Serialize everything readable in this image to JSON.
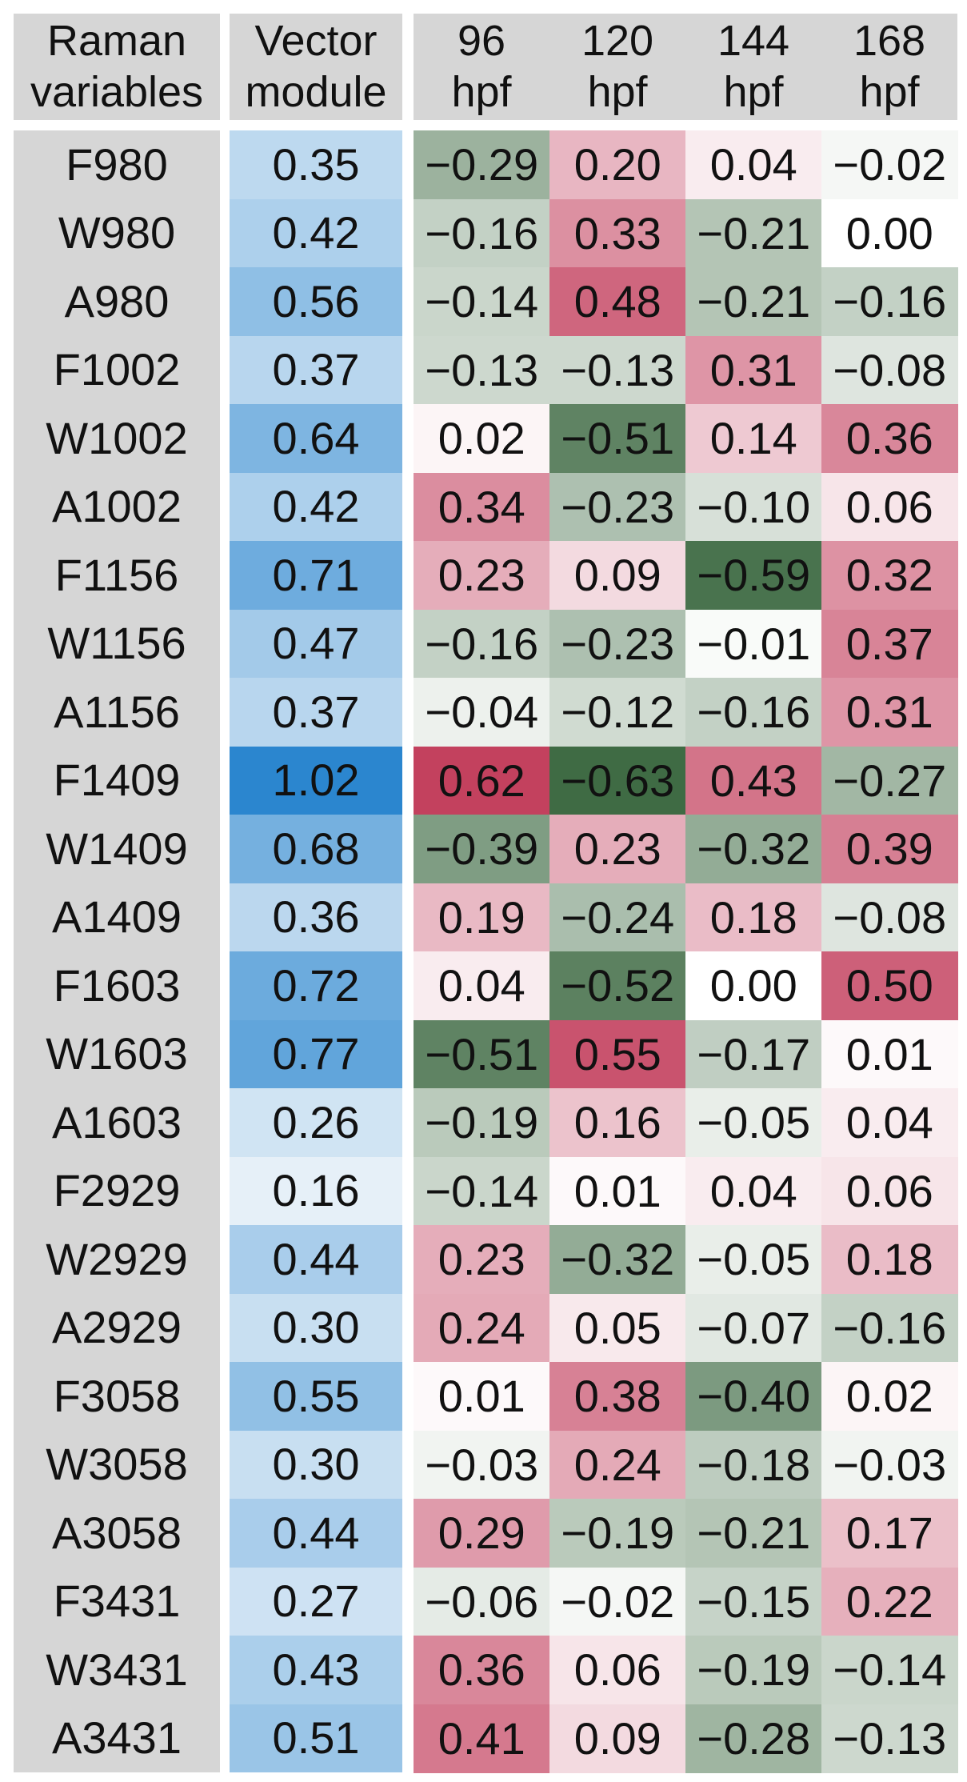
{
  "chart_data": {
    "type": "heatmap",
    "header_row_label": [
      "Raman",
      "variables"
    ],
    "vector_header": [
      "Vector",
      "module"
    ],
    "columns": [
      {
        "name_lines": [
          "96",
          "hpf"
        ]
      },
      {
        "name_lines": [
          "120",
          "hpf"
        ]
      },
      {
        "name_lines": [
          "144",
          "hpf"
        ]
      },
      {
        "name_lines": [
          "168",
          "hpf"
        ]
      }
    ],
    "rows": [
      "F980",
      "W980",
      "A980",
      "F1002",
      "W1002",
      "A1002",
      "F1156",
      "W1156",
      "A1156",
      "F1409",
      "W1409",
      "A1409",
      "F1603",
      "W1603",
      "A1603",
      "F2929",
      "W2929",
      "A2929",
      "F3058",
      "W3058",
      "A3058",
      "F3431",
      "W3431",
      "A3431"
    ],
    "vector_module": [
      0.35,
      0.42,
      0.56,
      0.37,
      0.64,
      0.42,
      0.71,
      0.47,
      0.37,
      1.02,
      0.68,
      0.36,
      0.72,
      0.77,
      0.26,
      0.16,
      0.44,
      0.3,
      0.55,
      0.3,
      0.44,
      0.27,
      0.43,
      0.51
    ],
    "vector_module_labels": [
      "0.35",
      "0.42",
      "0.56",
      "0.37",
      "0.64",
      "0.42",
      "0.71",
      "0.47",
      "0.37",
      "1.02",
      "0.68",
      "0.36",
      "0.72",
      "0.77",
      "0.26",
      "0.16",
      "0.44",
      "0.30",
      "0.55",
      "0.30",
      "0.44",
      "0.27",
      "0.43",
      "0.51"
    ],
    "values": [
      [
        -0.29,
        0.2,
        0.04,
        -0.02
      ],
      [
        -0.16,
        0.33,
        -0.21,
        0.0
      ],
      [
        -0.14,
        0.48,
        -0.21,
        -0.16
      ],
      [
        -0.13,
        -0.13,
        0.31,
        -0.08
      ],
      [
        0.02,
        -0.51,
        0.14,
        0.36
      ],
      [
        0.34,
        -0.23,
        -0.1,
        0.06
      ],
      [
        0.23,
        0.09,
        -0.59,
        0.32
      ],
      [
        -0.16,
        -0.23,
        -0.01,
        0.37
      ],
      [
        -0.04,
        -0.12,
        -0.16,
        0.31
      ],
      [
        0.62,
        -0.63,
        0.43,
        -0.27
      ],
      [
        -0.39,
        0.23,
        -0.32,
        0.39
      ],
      [
        0.19,
        -0.24,
        0.18,
        -0.08
      ],
      [
        0.04,
        -0.52,
        0.0,
        0.5
      ],
      [
        -0.51,
        0.55,
        -0.17,
        0.01
      ],
      [
        -0.19,
        0.16,
        -0.05,
        0.04
      ],
      [
        -0.14,
        0.01,
        0.04,
        0.06
      ],
      [
        0.23,
        -0.32,
        -0.05,
        0.18
      ],
      [
        0.24,
        0.05,
        -0.07,
        -0.16
      ],
      [
        0.01,
        0.38,
        -0.4,
        0.02
      ],
      [
        -0.03,
        0.24,
        -0.18,
        -0.03
      ],
      [
        0.29,
        -0.19,
        -0.21,
        0.17
      ],
      [
        -0.06,
        -0.02,
        -0.15,
        0.22
      ],
      [
        0.36,
        0.06,
        -0.19,
        -0.14
      ],
      [
        0.41,
        0.09,
        -0.28,
        -0.13
      ]
    ],
    "value_labels": [
      [
        "−0.29",
        "0.20",
        "0.04",
        "−0.02"
      ],
      [
        "−0.16",
        "0.33",
        "−0.21",
        "0.00"
      ],
      [
        "−0.14",
        "0.48",
        "−0.21",
        "−0.16"
      ],
      [
        "−0.13",
        "−0.13",
        "0.31",
        "−0.08"
      ],
      [
        "0.02",
        "−0.51",
        "0.14",
        "0.36"
      ],
      [
        "0.34",
        "−0.23",
        "−0.10",
        "0.06"
      ],
      [
        "0.23",
        "0.09",
        "−0.59",
        "0.32"
      ],
      [
        "−0.16",
        "−0.23",
        "−0.01",
        "0.37"
      ],
      [
        "−0.04",
        "−0.12",
        "−0.16",
        "0.31"
      ],
      [
        "0.62",
        "−0.63",
        "0.43",
        "−0.27"
      ],
      [
        "−0.39",
        "0.23",
        "−0.32",
        "0.39"
      ],
      [
        "0.19",
        "−0.24",
        "0.18",
        "−0.08"
      ],
      [
        "0.04",
        "−0.52",
        "0.00",
        "0.50"
      ],
      [
        "−0.51",
        "0.55",
        "−0.17",
        "0.01"
      ],
      [
        "−0.19",
        "0.16",
        "−0.05",
        "0.04"
      ],
      [
        "−0.14",
        "0.01",
        "0.04",
        "0.06"
      ],
      [
        "0.23",
        "−0.32",
        "−0.05",
        "0.18"
      ],
      [
        "0.24",
        "0.05",
        "−0.07",
        "−0.16"
      ],
      [
        "0.01",
        "0.38",
        "−0.40",
        "0.02"
      ],
      [
        "−0.03",
        "0.24",
        "−0.18",
        "−0.03"
      ],
      [
        "0.29",
        "−0.19",
        "−0.21",
        "0.17"
      ],
      [
        "−0.06",
        "−0.02",
        "−0.15",
        "0.22"
      ],
      [
        "0.36",
        "0.06",
        "−0.19",
        "−0.14"
      ],
      [
        "0.41",
        "0.09",
        "−0.28",
        "−0.13"
      ]
    ],
    "colors": {
      "positive": "#c23e5c",
      "negative": "#3f6b44",
      "vector_high": "#2b86cf",
      "vector_low": "#e6f0f8",
      "header_bg": "#d6d6d6"
    }
  }
}
